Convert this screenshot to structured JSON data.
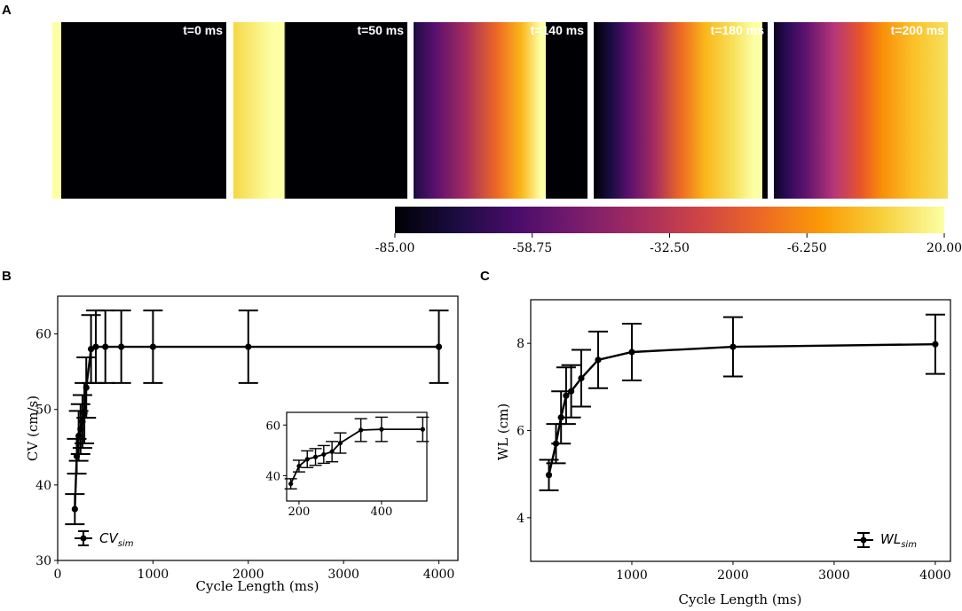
{
  "panel_a": {
    "letter": "A",
    "snapshots": [
      {
        "label": "t=0 ms",
        "stops": [
          [
            "#fcffa4",
            0
          ],
          [
            "#fcffa4",
            0.05
          ],
          [
            "#000004",
            0.05
          ],
          [
            "#000004",
            1
          ]
        ]
      },
      {
        "label": "t=50 ms",
        "stops": [
          [
            "#f6d746",
            0
          ],
          [
            "#fcffa4",
            0.22
          ],
          [
            "#fcffa4",
            0.29
          ],
          [
            "#000004",
            0.3
          ],
          [
            "#000004",
            1
          ]
        ]
      },
      {
        "label": "t=140 ms",
        "stops": [
          [
            "#1b0c41",
            0
          ],
          [
            "#57106e",
            0.12
          ],
          [
            "#a52c60",
            0.3
          ],
          [
            "#ed6925",
            0.48
          ],
          [
            "#fbb61a",
            0.62
          ],
          [
            "#fcffa4",
            0.73
          ],
          [
            "#fcffa4",
            0.76
          ],
          [
            "#000004",
            0.76
          ],
          [
            "#000004",
            1
          ]
        ]
      },
      {
        "label": "t=180 ms",
        "stops": [
          [
            "#000004",
            0
          ],
          [
            "#1b0c41",
            0.1
          ],
          [
            "#57106e",
            0.2
          ],
          [
            "#a52c60",
            0.35
          ],
          [
            "#ed6925",
            0.5
          ],
          [
            "#fbb61a",
            0.64
          ],
          [
            "#f6e05a",
            0.8
          ],
          [
            "#fcffa4",
            0.92
          ],
          [
            "#fcffa4",
            0.97
          ],
          [
            "#000004",
            0.97
          ],
          [
            "#000004",
            1
          ]
        ]
      },
      {
        "label": "t=200 ms",
        "stops": [
          [
            "#0a0622",
            0
          ],
          [
            "#2d0b59",
            0.08
          ],
          [
            "#5d126e",
            0.18
          ],
          [
            "#b73779",
            0.35
          ],
          [
            "#e9542a",
            0.5
          ],
          [
            "#f98e09",
            0.62
          ],
          [
            "#fbc128",
            0.8
          ],
          [
            "#f5e15d",
            1
          ]
        ]
      }
    ],
    "colorbar": {
      "ticks": [
        "-85.00",
        "-58.75",
        "-32.50",
        "-6.250",
        "20.00"
      ],
      "min": -85,
      "max": 20,
      "stops": [
        "#000004",
        "#1b0c41",
        "#4a0c6b",
        "#781c6d",
        "#a52c60",
        "#cf4446",
        "#ed6925",
        "#fb9b06",
        "#f7d13d",
        "#fcffa4"
      ]
    }
  },
  "panel_b": {
    "letter": "B",
    "chart_data": {
      "type": "line",
      "xlabel": "Cycle Length (ms)",
      "ylabel": "CV (cm/s)",
      "xlim": [
        0,
        4200
      ],
      "ylim": [
        30,
        65
      ],
      "xticks": [
        0,
        1000,
        2000,
        3000,
        4000
      ],
      "yticks": [
        30,
        40,
        50,
        60
      ],
      "legend": "CV",
      "legend_sub": "sim",
      "series": [
        {
          "name": "CV_sim",
          "x": [
            180,
            200,
            220,
            240,
            260,
            280,
            300,
            350,
            400,
            500,
            667,
            1000,
            2000,
            4000
          ],
          "y": [
            36.8,
            43.8,
            46.5,
            47.4,
            48.4,
            49.5,
            52.9,
            58.0,
            58.3,
            58.3,
            58.3,
            58.3,
            58.3,
            58.3
          ],
          "err": [
            2.0,
            2.3,
            3.3,
            3.3,
            3.5,
            4.0,
            4.0,
            4.5,
            4.8,
            4.8,
            4.8,
            4.8,
            4.8,
            4.8
          ]
        }
      ]
    },
    "inset": {
      "xlim": [
        170,
        510
      ],
      "ylim": [
        30,
        65
      ],
      "xticks": [
        200,
        400
      ],
      "yticks": [
        40,
        60
      ],
      "x": [
        180,
        200,
        220,
        240,
        260,
        280,
        300,
        350,
        400,
        500
      ],
      "y": [
        36.8,
        43.8,
        46.5,
        47.4,
        48.4,
        49.5,
        52.9,
        58.0,
        58.3,
        58.3
      ],
      "err": [
        2.0,
        2.3,
        3.3,
        3.3,
        3.5,
        4.0,
        4.0,
        4.5,
        4.8,
        4.8
      ]
    }
  },
  "panel_c": {
    "letter": "C",
    "chart_data": {
      "type": "line",
      "xlabel": "Cycle Length (ms)",
      "ylabel": "WL (cm)",
      "xlim": [
        0,
        4150
      ],
      "ylim": [
        3.0,
        9.0
      ],
      "xticks": [
        1000,
        2000,
        3000,
        4000
      ],
      "yticks": [
        4,
        6,
        8
      ],
      "legend": "WL",
      "legend_sub": "sim",
      "series": [
        {
          "name": "WL_sim",
          "x": [
            180,
            250,
            300,
            350,
            400,
            500,
            667,
            1000,
            2000,
            4000
          ],
          "y": [
            4.98,
            5.7,
            6.3,
            6.8,
            6.9,
            7.2,
            7.62,
            7.8,
            7.92,
            7.98
          ],
          "err": [
            0.35,
            0.45,
            0.6,
            0.65,
            0.6,
            0.65,
            0.65,
            0.65,
            0.68,
            0.68
          ]
        }
      ]
    }
  }
}
